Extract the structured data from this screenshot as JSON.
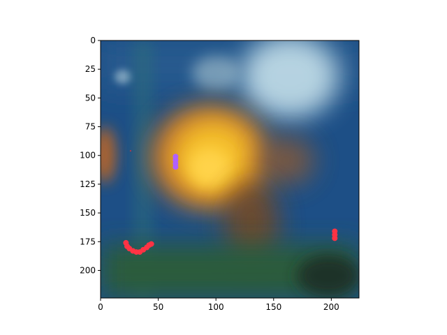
{
  "chart_data": {
    "type": "heatmap",
    "title": "",
    "xlabel": "",
    "ylabel": "",
    "image_width": 224,
    "image_height": 224,
    "xlim": [
      0,
      224
    ],
    "ylim": [
      224,
      0
    ],
    "y_axis_inverted": true,
    "x_ticks": [
      0,
      50,
      100,
      150,
      200
    ],
    "y_ticks": [
      0,
      25,
      50,
      75,
      100,
      125,
      150,
      175,
      200
    ],
    "x_tick_labels": [
      "0",
      "50",
      "100",
      "150",
      "200"
    ],
    "y_tick_labels": [
      "0",
      "25",
      "50",
      "75",
      "100",
      "125",
      "150",
      "175",
      "200"
    ],
    "grid": false,
    "content": "blurred photograph: dark blue background with a bright yellow-orange blob in the center, light cyan-white patch upper right, dark green lower band",
    "markers": [
      {
        "name": "red arc",
        "color": "#ff3344",
        "points": [
          [
            22,
            176
          ],
          [
            23,
            179
          ],
          [
            25,
            181
          ],
          [
            28,
            183
          ],
          [
            31,
            184
          ],
          [
            34,
            184
          ],
          [
            37,
            182
          ],
          [
            40,
            180
          ],
          [
            42,
            178
          ],
          [
            44,
            177
          ]
        ]
      },
      {
        "name": "violet blob",
        "color": "#b060ff",
        "points": [
          [
            65,
            101
          ],
          [
            65,
            104
          ],
          [
            65,
            107
          ],
          [
            65,
            110
          ]
        ]
      },
      {
        "name": "red blob right",
        "color": "#ff3344",
        "points": [
          [
            203,
            166
          ],
          [
            203,
            169
          ],
          [
            203,
            172
          ]
        ]
      },
      {
        "name": "red dot",
        "color": "#cc3340",
        "points": [
          [
            26,
            96
          ]
        ]
      }
    ],
    "colors": {
      "background_blue": "#1d4f86",
      "deep_blue": "#0f3a6e",
      "yellow": "#f5c02a",
      "orange": "#d7741b",
      "cyan_white": "#cfe8f0",
      "green": "#2a5b3a",
      "teal": "#2f6f79"
    }
  }
}
